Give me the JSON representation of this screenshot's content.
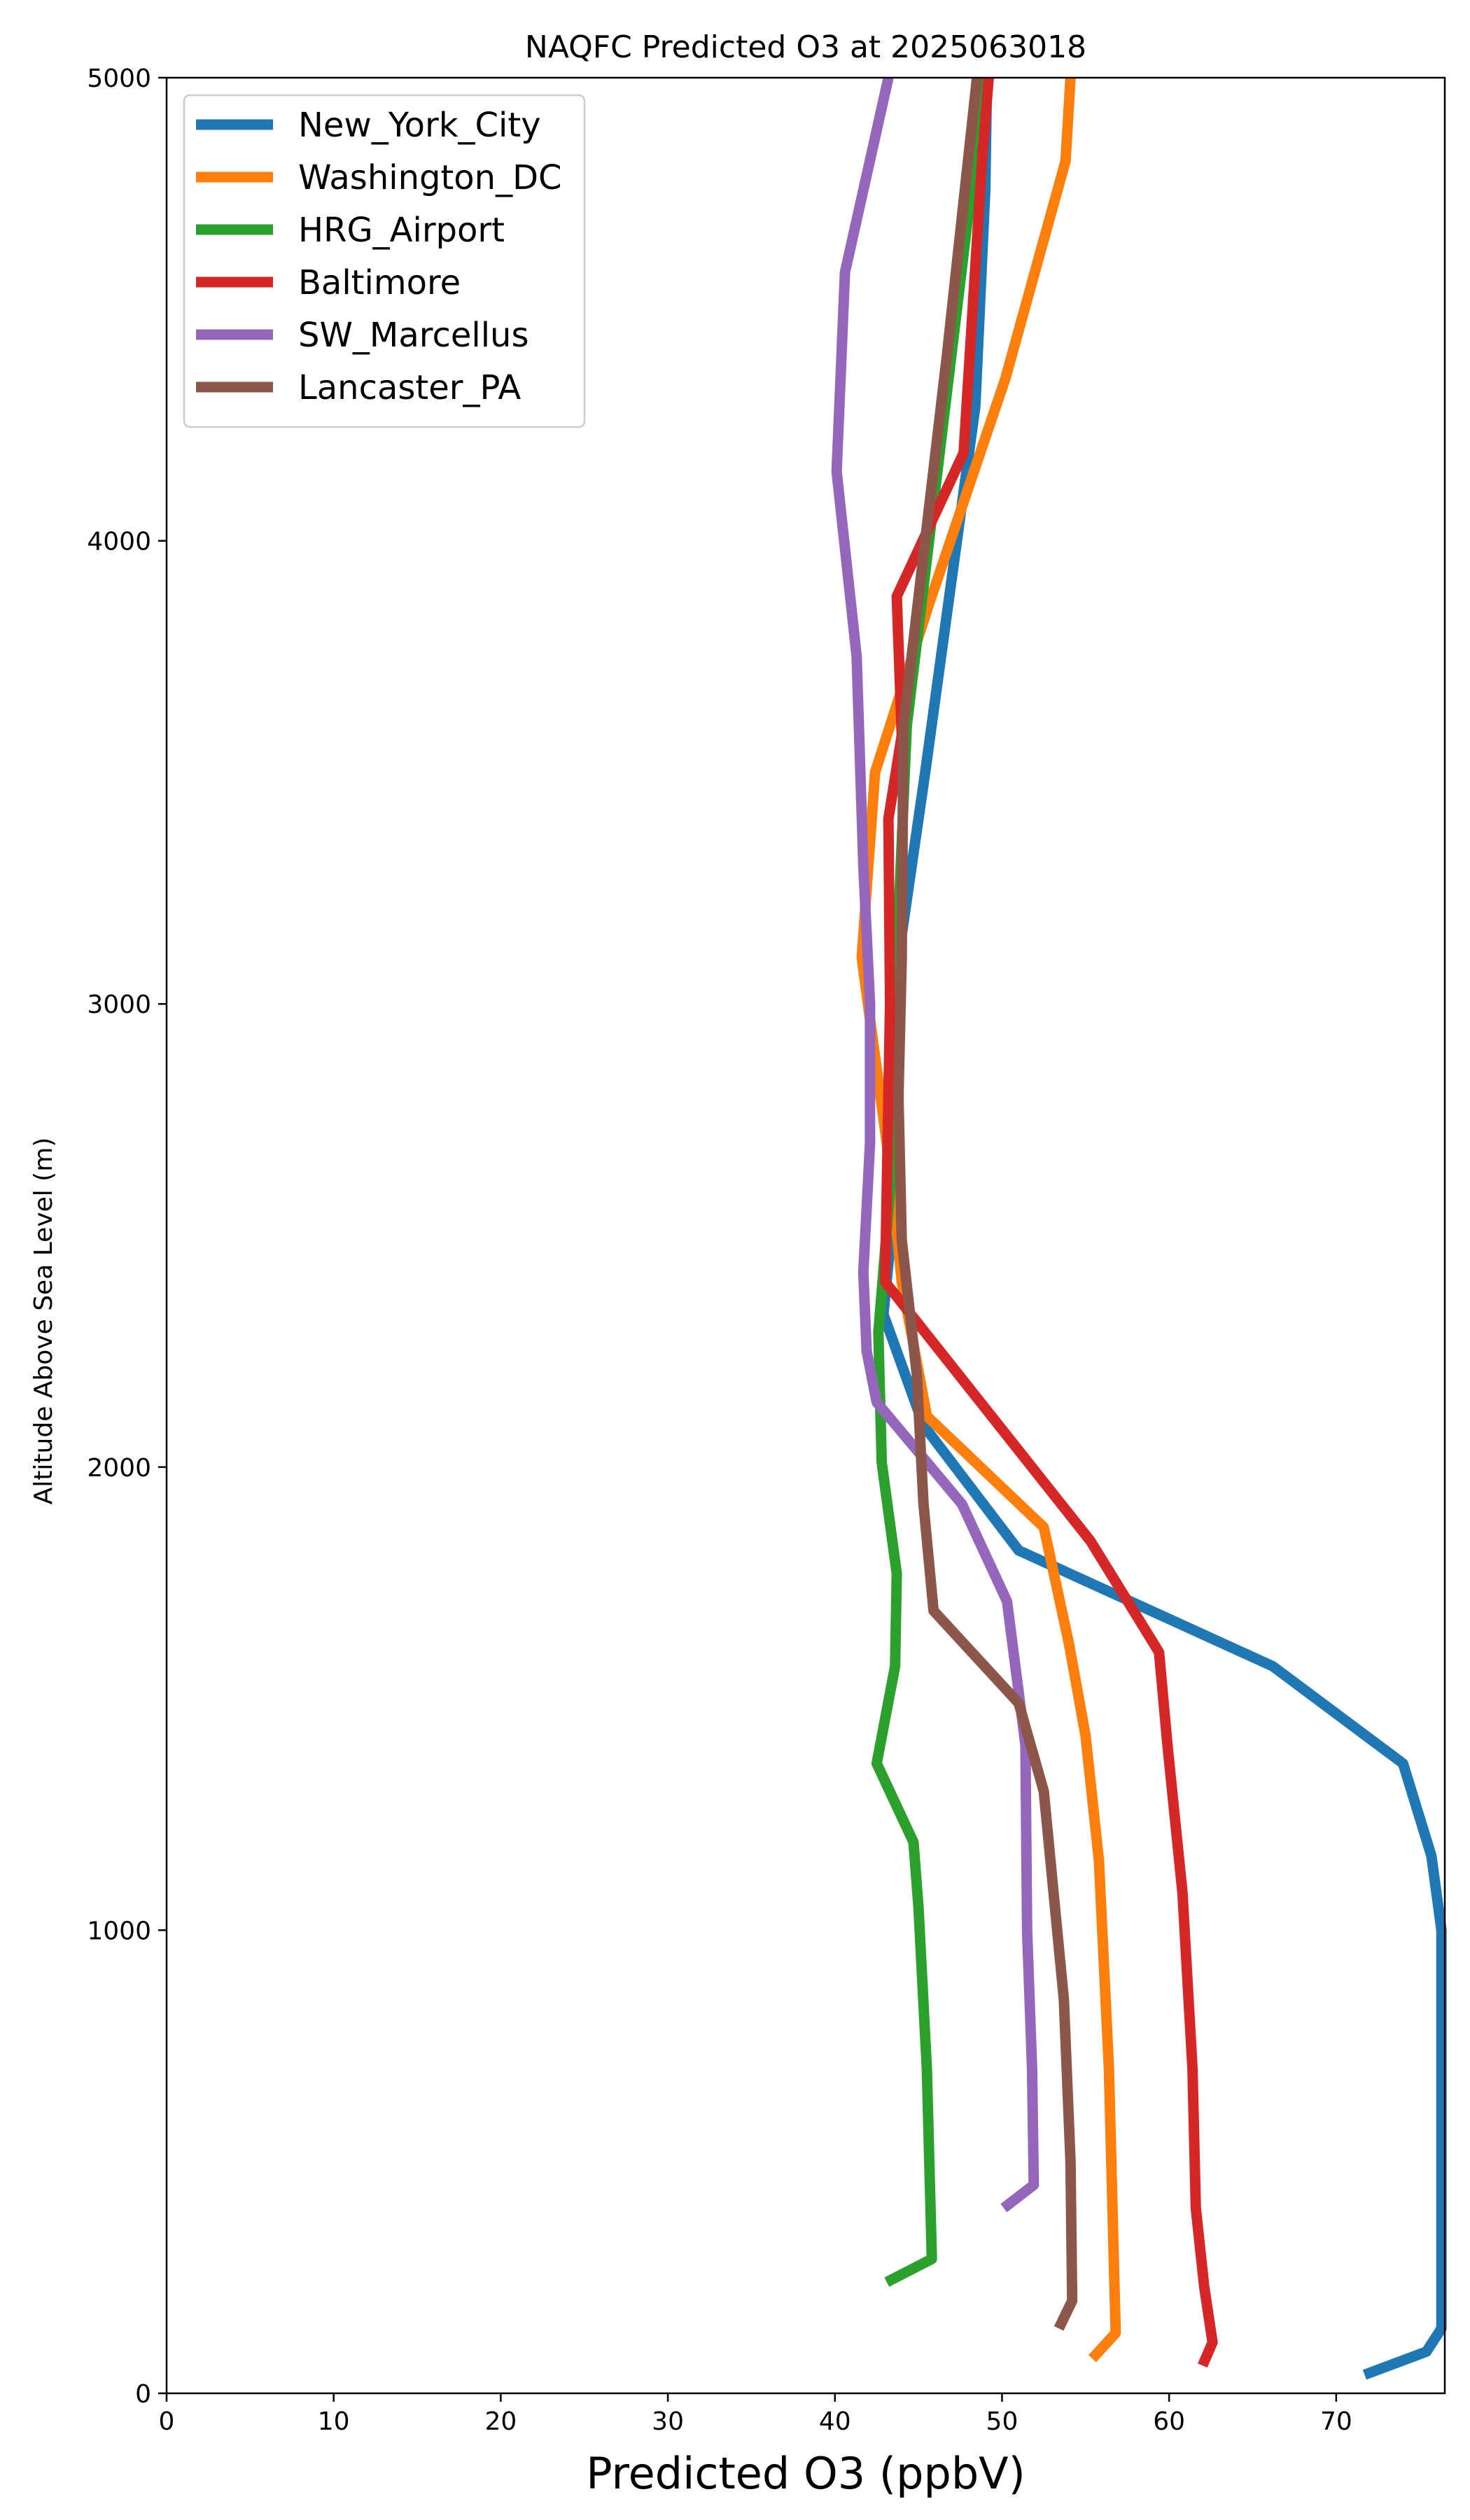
{
  "chart_data": {
    "type": "line",
    "title": "NAQFC Predicted O3 at 2025063018",
    "xlabel": "Predicted O3 (ppbV)",
    "ylabel": "Altitude Above Sea Level (m)",
    "xlim": [
      0,
      76.5
    ],
    "ylim": [
      0,
      5000
    ],
    "xticks": [
      0,
      10,
      20,
      30,
      40,
      50,
      60,
      70
    ],
    "yticks": [
      0,
      1000,
      2000,
      3000,
      4000,
      5000
    ],
    "legend_position": "top-left",
    "series": [
      {
        "name": "New_York_City",
        "color": "#1f77b4",
        "points": [
          [
            71.7,
            40
          ],
          [
            75.4,
            90
          ],
          [
            76.3,
            140
          ],
          [
            76.3,
            300
          ],
          [
            76.3,
            1000
          ],
          [
            75.7,
            1160
          ],
          [
            74,
            1360
          ],
          [
            66.2,
            1570
          ],
          [
            51,
            1820
          ],
          [
            45.3,
            2090
          ],
          [
            42.9,
            2330
          ],
          [
            43.5,
            2550
          ],
          [
            43.8,
            3100
          ],
          [
            45.4,
            3500
          ],
          [
            48.4,
            4290
          ],
          [
            49,
            4760
          ],
          [
            49.1,
            5000
          ]
        ]
      },
      {
        "name": "Washington_DC",
        "color": "#ff7f0e",
        "points": [
          [
            55.4,
            75
          ],
          [
            56.8,
            130
          ],
          [
            56.4,
            700
          ],
          [
            55.8,
            1150
          ],
          [
            55,
            1420
          ],
          [
            54,
            1620
          ],
          [
            52.5,
            1870
          ],
          [
            45.5,
            2110
          ],
          [
            44,
            2400
          ],
          [
            43.4,
            2620
          ],
          [
            41.6,
            3100
          ],
          [
            42.4,
            3500
          ],
          [
            45.6,
            3860
          ],
          [
            50.2,
            4350
          ],
          [
            53.8,
            4820
          ],
          [
            54.1,
            5000
          ]
        ]
      },
      {
        "name": "HRG_Airport",
        "color": "#2ca02c",
        "points": [
          [
            43.1,
            240
          ],
          [
            45.8,
            290
          ],
          [
            45.5,
            700
          ],
          [
            45,
            1050
          ],
          [
            44.7,
            1190
          ],
          [
            42.5,
            1360
          ],
          [
            43.6,
            1570
          ],
          [
            43.7,
            1770
          ],
          [
            42.8,
            2010
          ],
          [
            42.6,
            2290
          ],
          [
            43.3,
            2600
          ],
          [
            43.7,
            3100
          ],
          [
            44.3,
            3600
          ],
          [
            48.3,
            4800
          ],
          [
            48.6,
            5000
          ]
        ]
      },
      {
        "name": "Baltimore",
        "color": "#d62728",
        "points": [
          [
            62,
            60
          ],
          [
            62.6,
            110
          ],
          [
            62.1,
            230
          ],
          [
            61.6,
            400
          ],
          [
            61.4,
            700
          ],
          [
            60.8,
            1080
          ],
          [
            59.9,
            1400
          ],
          [
            59.4,
            1600
          ],
          [
            55.3,
            1840
          ],
          [
            43,
            2400
          ],
          [
            43.1,
            2600
          ],
          [
            43.3,
            3000
          ],
          [
            43.2,
            3400
          ],
          [
            44,
            3580
          ],
          [
            43.7,
            3880
          ],
          [
            47.7,
            4190
          ],
          [
            48.8,
            4820
          ],
          [
            49.2,
            5000
          ]
        ]
      },
      {
        "name": "SW_Marcellus",
        "color": "#9467bd",
        "points": [
          [
            50.1,
            400
          ],
          [
            51.9,
            450
          ],
          [
            51.8,
            700
          ],
          [
            51.5,
            1000
          ],
          [
            51.4,
            1400
          ],
          [
            50.3,
            1710
          ],
          [
            47.6,
            1920
          ],
          [
            42.5,
            2140
          ],
          [
            41.9,
            2250
          ],
          [
            41.7,
            2420
          ],
          [
            42.1,
            2700
          ],
          [
            42.1,
            3000
          ],
          [
            41.7,
            3300
          ],
          [
            41.3,
            3750
          ],
          [
            40.1,
            4150
          ],
          [
            40.6,
            4580
          ],
          [
            43.2,
            5000
          ]
        ]
      },
      {
        "name": "Lancaster_PA",
        "color": "#8c564b",
        "points": [
          [
            53.4,
            140
          ],
          [
            54.2,
            200
          ],
          [
            54.1,
            500
          ],
          [
            53.7,
            850
          ],
          [
            52.5,
            1300
          ],
          [
            51,
            1490
          ],
          [
            45.9,
            1690
          ],
          [
            45.3,
            1920
          ],
          [
            44.9,
            2200
          ],
          [
            44,
            2490
          ],
          [
            43.8,
            2800
          ],
          [
            44,
            3100
          ],
          [
            44.1,
            3600
          ],
          [
            46.7,
            4400
          ],
          [
            48.5,
            5000
          ]
        ]
      }
    ]
  }
}
